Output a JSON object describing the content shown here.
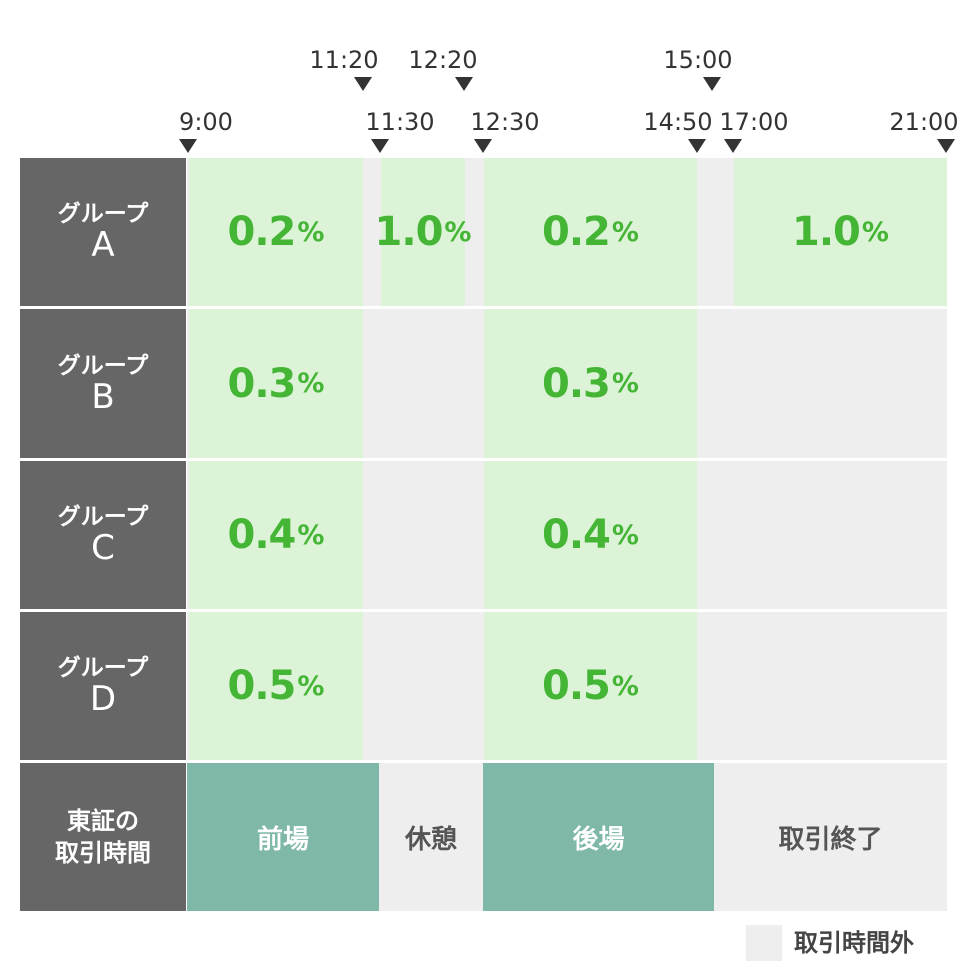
{
  "time_labels_top": [
    "11:20",
    "12:20",
    "15:00"
  ],
  "time_labels_bottom": [
    "9:00",
    "11:30",
    "12:30",
    "14:50",
    "17:00",
    "21:00"
  ],
  "groups": [
    {
      "name": "グループ",
      "letter": "A",
      "rates": [
        "0.2",
        "1.0",
        "0.2",
        "1.0"
      ]
    },
    {
      "name": "グループ",
      "letter": "B",
      "rates": [
        "0.3",
        "0.3"
      ]
    },
    {
      "name": "グループ",
      "letter": "C",
      "rates": [
        "0.4",
        "0.4"
      ]
    },
    {
      "name": "グループ",
      "letter": "D",
      "rates": [
        "0.5",
        "0.5"
      ]
    }
  ],
  "percent_sign": "%",
  "tse": {
    "header_line1": "東証の",
    "header_line2": "取引時間",
    "sessions": [
      "前場",
      "休憩",
      "後場",
      "取引終了"
    ]
  },
  "legend": {
    "label": "取引時間外"
  },
  "colors": {
    "header_bg": "#666666",
    "off_hours": "#eeeeee",
    "rate_cell": "#dcf3d8",
    "rate_text": "#45b535",
    "session_active": "#7fb8a8",
    "marker": "#333333"
  }
}
